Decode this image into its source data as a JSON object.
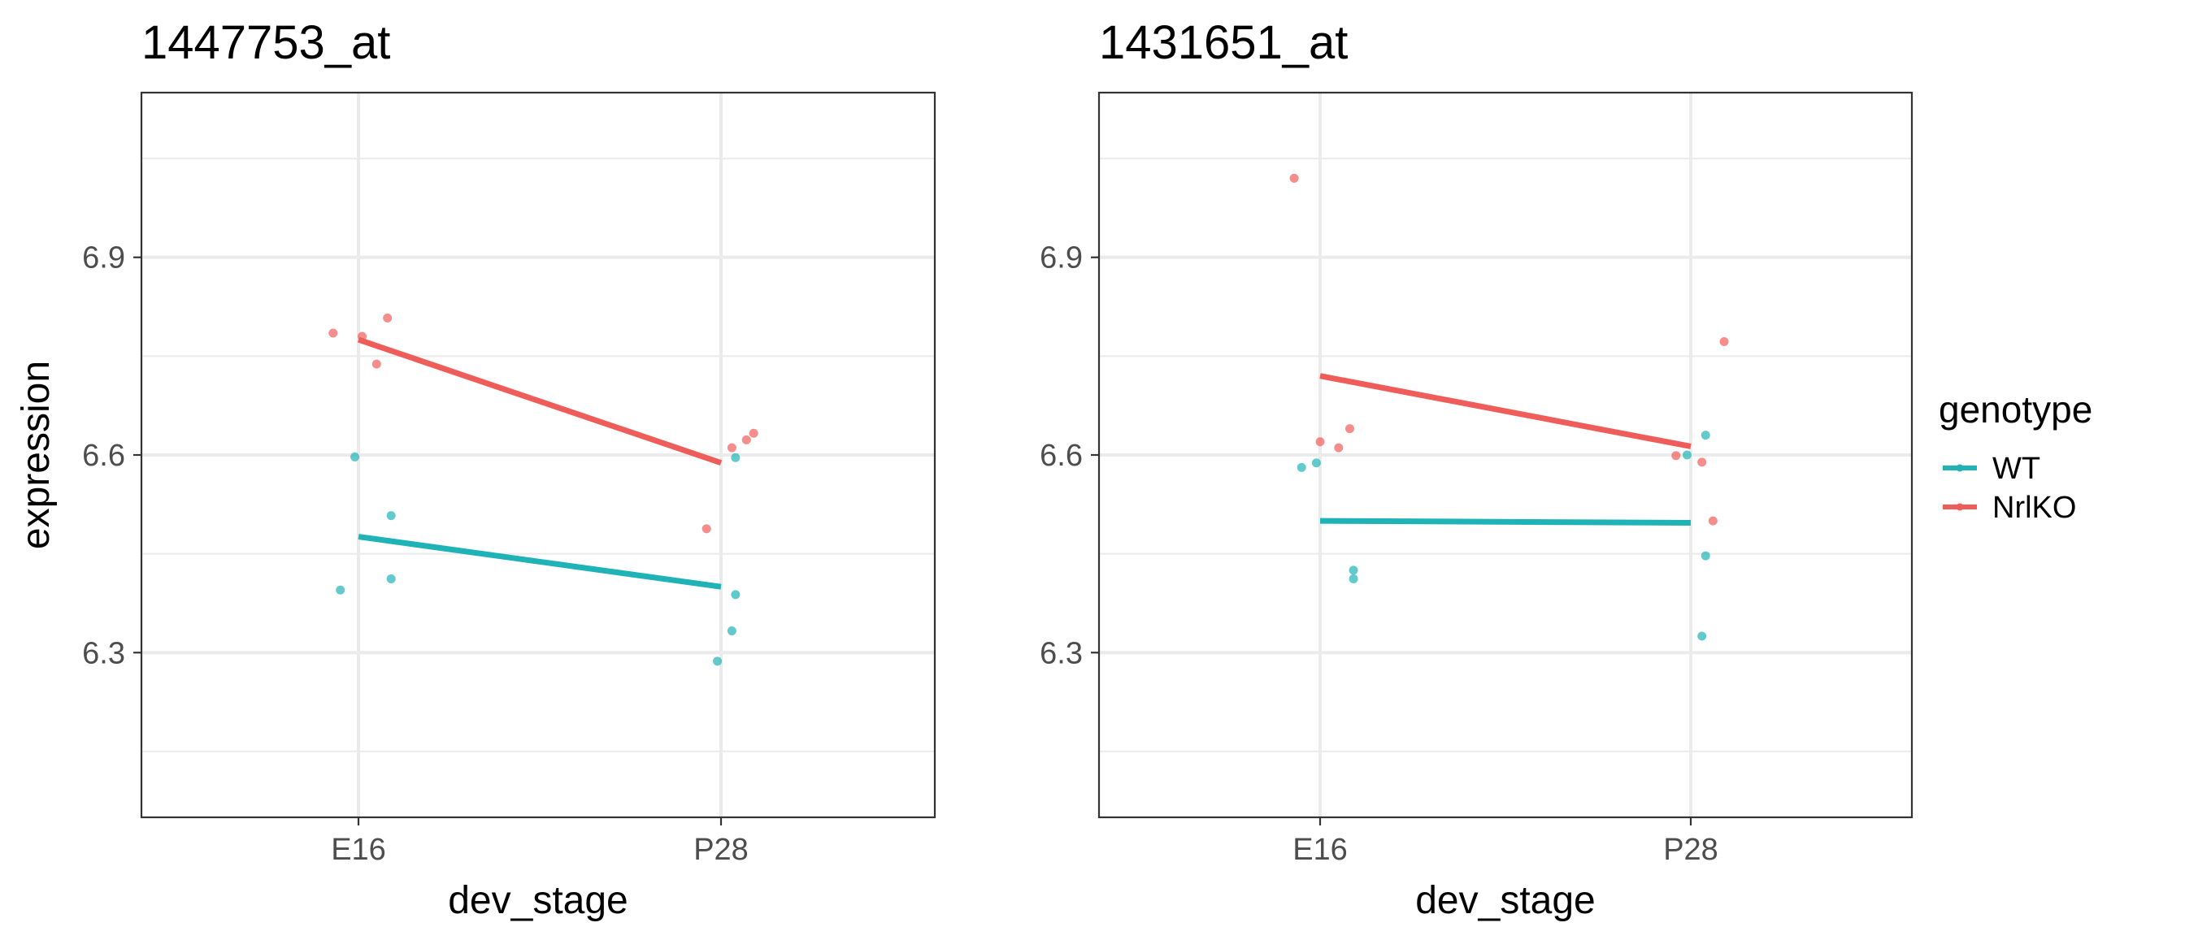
{
  "chart_data": [
    {
      "type": "scatter",
      "title": "1447753_at",
      "xlabel": "dev_stage",
      "ylabel": "expression",
      "categories": [
        "E16",
        "P28"
      ],
      "ylim": [
        6.05,
        7.15
      ],
      "yticks": [
        6.3,
        6.6,
        6.9
      ],
      "grid": true,
      "series": [
        {
          "name": "WT",
          "color": "#1fb3b8",
          "mean_line": [
            6.476,
            6.4
          ],
          "points": [
            {
              "cat": "E16",
              "jitter": -0.05,
              "y": 6.395
            },
            {
              "cat": "E16",
              "jitter": -0.01,
              "y": 6.597
            },
            {
              "cat": "E16",
              "jitter": 0.09,
              "y": 6.508
            },
            {
              "cat": "E16",
              "jitter": 0.09,
              "y": 6.412
            },
            {
              "cat": "P28",
              "jitter": -0.01,
              "y": 6.287
            },
            {
              "cat": "P28",
              "jitter": 0.03,
              "y": 6.333
            },
            {
              "cat": "P28",
              "jitter": 0.04,
              "y": 6.388
            },
            {
              "cat": "P28",
              "jitter": 0.04,
              "y": 6.596
            }
          ]
        },
        {
          "name": "NrlKO",
          "color": "#ef5d5a",
          "mean_line": [
            6.775,
            6.588
          ],
          "points": [
            {
              "cat": "E16",
              "jitter": -0.07,
              "y": 6.785
            },
            {
              "cat": "E16",
              "jitter": 0.01,
              "y": 6.78
            },
            {
              "cat": "E16",
              "jitter": 0.05,
              "y": 6.738
            },
            {
              "cat": "E16",
              "jitter": 0.08,
              "y": 6.808
            },
            {
              "cat": "P28",
              "jitter": -0.04,
              "y": 6.488
            },
            {
              "cat": "P28",
              "jitter": 0.03,
              "y": 6.611
            },
            {
              "cat": "P28",
              "jitter": 0.07,
              "y": 6.623
            },
            {
              "cat": "P28",
              "jitter": 0.09,
              "y": 6.633
            }
          ]
        }
      ]
    },
    {
      "type": "scatter",
      "title": "1431651_at",
      "xlabel": "dev_stage",
      "ylabel": "",
      "categories": [
        "E16",
        "P28"
      ],
      "ylim": [
        6.05,
        7.15
      ],
      "yticks": [
        6.3,
        6.6,
        6.9
      ],
      "grid": true,
      "series": [
        {
          "name": "WT",
          "color": "#1fb3b8",
          "mean_line": [
            6.5,
            6.497
          ],
          "points": [
            {
              "cat": "E16",
              "jitter": -0.05,
              "y": 6.581
            },
            {
              "cat": "E16",
              "jitter": -0.01,
              "y": 6.588
            },
            {
              "cat": "E16",
              "jitter": 0.09,
              "y": 6.425
            },
            {
              "cat": "E16",
              "jitter": 0.09,
              "y": 6.412
            },
            {
              "cat": "P28",
              "jitter": -0.01,
              "y": 6.6
            },
            {
              "cat": "P28",
              "jitter": 0.04,
              "y": 6.63
            },
            {
              "cat": "P28",
              "jitter": 0.04,
              "y": 6.447
            },
            {
              "cat": "P28",
              "jitter": 0.03,
              "y": 6.325
            }
          ]
        },
        {
          "name": "NrlKO",
          "color": "#ef5d5a",
          "mean_line": [
            6.72,
            6.613
          ],
          "points": [
            {
              "cat": "E16",
              "jitter": -0.07,
              "y": 7.02
            },
            {
              "cat": "E16",
              "jitter": 0.0,
              "y": 6.62
            },
            {
              "cat": "E16",
              "jitter": 0.05,
              "y": 6.611
            },
            {
              "cat": "E16",
              "jitter": 0.08,
              "y": 6.64
            },
            {
              "cat": "P28",
              "jitter": -0.04,
              "y": 6.599
            },
            {
              "cat": "P28",
              "jitter": 0.03,
              "y": 6.589
            },
            {
              "cat": "P28",
              "jitter": 0.06,
              "y": 6.5
            },
            {
              "cat": "P28",
              "jitter": 0.09,
              "y": 6.772
            }
          ]
        }
      ]
    }
  ],
  "legend": {
    "title": "genotype",
    "items": [
      {
        "label": "WT",
        "color": "#1fb3b8"
      },
      {
        "label": "NrlKO",
        "color": "#ef5d5a"
      }
    ]
  }
}
